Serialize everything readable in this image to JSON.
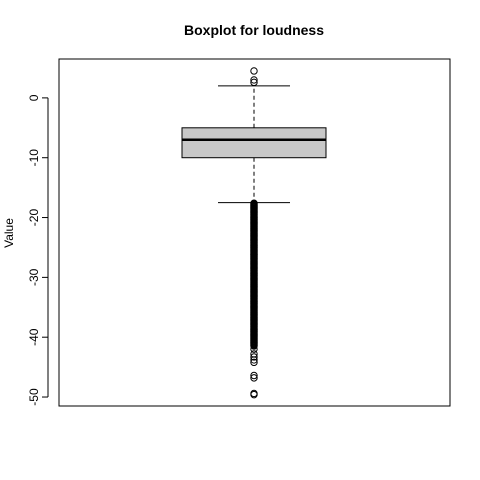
{
  "chart_data": {
    "type": "boxplot",
    "title": "Boxplot for loudness",
    "xlabel": "",
    "ylabel": "Value",
    "ylim": [
      -51.5,
      6.5
    ],
    "yticks": [
      0,
      -10,
      -20,
      -30,
      -40,
      -50
    ],
    "ytick_labels": [
      "0",
      "-10",
      "-20",
      "-30",
      "-40",
      "-50"
    ],
    "box": {
      "whisker_low": -17.5,
      "q1": -10.0,
      "median": -7.0,
      "q3": -5.0,
      "whisker_high": 2.0
    },
    "outliers_high": [
      4.5,
      3.0,
      2.6
    ],
    "outliers_low_dense_range": [
      -41.5,
      -17.6
    ],
    "outliers_low_sparse": [
      -42.0,
      -42.8,
      -43.3,
      -43.8,
      -44.2,
      -46.4,
      -46.8,
      -49.4,
      -49.6
    ],
    "colors": {
      "box_fill": "#c8c8c8",
      "stroke": "#000000"
    }
  }
}
